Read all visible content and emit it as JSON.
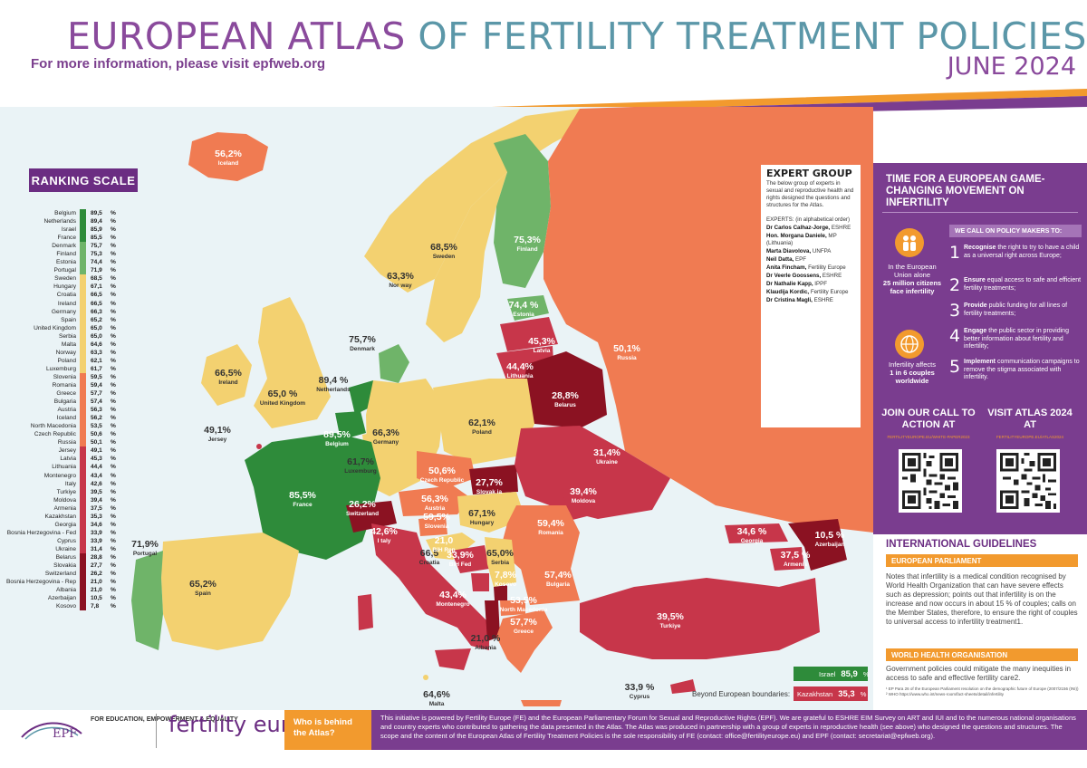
{
  "header": {
    "title_part1": "EUROPEAN ATLAS",
    "title_part2": "OF FERTILITY TREATMENT POLICIES",
    "subtitle": "For more information, please visit",
    "subtitle_link": "epfweb.org",
    "date": "JUNE 2024"
  },
  "ranking": {
    "title": "RANKING SCALE",
    "percent_sign": "%",
    "items": [
      {
        "name": "Belgium",
        "value": "89,5",
        "color": "#2e8b3a"
      },
      {
        "name": "Netherlands",
        "value": "89,4",
        "color": "#2e8b3a"
      },
      {
        "name": "Israel",
        "value": "85,9",
        "color": "#2e8b3a"
      },
      {
        "name": "France",
        "value": "85,5",
        "color": "#2e8b3a"
      },
      {
        "name": "Denmark",
        "value": "75,7",
        "color": "#6fb469"
      },
      {
        "name": "Finland",
        "value": "75,3",
        "color": "#6fb469"
      },
      {
        "name": "Estonia",
        "value": "74,4",
        "color": "#6fb469"
      },
      {
        "name": "Portugal",
        "value": "71,9",
        "color": "#6fb469"
      },
      {
        "name": "Sweden",
        "value": "68,5",
        "color": "#f3d170"
      },
      {
        "name": "Hungary",
        "value": "67,1",
        "color": "#f3d170"
      },
      {
        "name": "Croatia",
        "value": "66,5",
        "color": "#f3d170"
      },
      {
        "name": "Ireland",
        "value": "66,5",
        "color": "#f3d170"
      },
      {
        "name": "Germany",
        "value": "66,3",
        "color": "#f3d170"
      },
      {
        "name": "Spain",
        "value": "65,2",
        "color": "#f3d170"
      },
      {
        "name": "United Kingdom",
        "value": "65,0",
        "color": "#f3d170"
      },
      {
        "name": "Serbia",
        "value": "65,0",
        "color": "#f3d170"
      },
      {
        "name": "Malta",
        "value": "64,6",
        "color": "#f3d170"
      },
      {
        "name": "Norway",
        "value": "63,3",
        "color": "#f3d170"
      },
      {
        "name": "Poland",
        "value": "62,1",
        "color": "#f3d170"
      },
      {
        "name": "Luxemburg",
        "value": "61,7",
        "color": "#f3d170"
      },
      {
        "name": "Slovenia",
        "value": "59,5",
        "color": "#f07b52"
      },
      {
        "name": "Romania",
        "value": "59,4",
        "color": "#f07b52"
      },
      {
        "name": "Greece",
        "value": "57,7",
        "color": "#f07b52"
      },
      {
        "name": "Bulgaria",
        "value": "57,4",
        "color": "#f07b52"
      },
      {
        "name": "Austria",
        "value": "56,3",
        "color": "#f07b52"
      },
      {
        "name": "Iceland",
        "value": "56,2",
        "color": "#f07b52"
      },
      {
        "name": "North Macedonia",
        "value": "53,5",
        "color": "#f07b52"
      },
      {
        "name": "Czech Republic",
        "value": "50,6",
        "color": "#f07b52"
      },
      {
        "name": "Russia",
        "value": "50,1",
        "color": "#f07b52"
      },
      {
        "name": "Jersey",
        "value": "49,1",
        "color": "#c7364a"
      },
      {
        "name": "Latvia",
        "value": "45,3",
        "color": "#c7364a"
      },
      {
        "name": "Lithuania",
        "value": "44,4",
        "color": "#c7364a"
      },
      {
        "name": "Montenegro",
        "value": "43,4",
        "color": "#c7364a"
      },
      {
        "name": "Italy",
        "value": "42,6",
        "color": "#c7364a"
      },
      {
        "name": "Turkiye",
        "value": "39,5",
        "color": "#c7364a"
      },
      {
        "name": "Moldova",
        "value": "39,4",
        "color": "#c7364a"
      },
      {
        "name": "Armenia",
        "value": "37,5",
        "color": "#c7364a"
      },
      {
        "name": "Kazakhstan",
        "value": "35,3",
        "color": "#c7364a"
      },
      {
        "name": "Georgia",
        "value": "34,6",
        "color": "#c7364a"
      },
      {
        "name": "Bosnia Herzegovina - Fed",
        "value": "33,9",
        "color": "#c7364a"
      },
      {
        "name": "Cyprus",
        "value": "33,9",
        "color": "#c7364a"
      },
      {
        "name": "Ukraine",
        "value": "31,4",
        "color": "#c7364a"
      },
      {
        "name": "Belarus",
        "value": "28,8",
        "color": "#8b1222"
      },
      {
        "name": "Slovakia",
        "value": "27,7",
        "color": "#8b1222"
      },
      {
        "name": "Switzerland",
        "value": "26,2",
        "color": "#8b1222"
      },
      {
        "name": "Bosnia Herzegovina - Rep",
        "value": "21,0",
        "color": "#8b1222"
      },
      {
        "name": "Albania",
        "value": "21,0",
        "color": "#8b1222"
      },
      {
        "name": "Azerbaijan",
        "value": "10,5",
        "color": "#8b1222"
      },
      {
        "name": "Kosovo",
        "value": "7,8",
        "color": "#8b1222"
      }
    ]
  },
  "map_labels": [
    {
      "value": "56,2%",
      "name": "Iceland"
    },
    {
      "value": "68,5%",
      "name": "Sweden"
    },
    {
      "value": "75,3%",
      "name": "Finland"
    },
    {
      "value": "63,3%",
      "name": "Nor way"
    },
    {
      "value": "74,4 %",
      "name": "Estonia"
    },
    {
      "value": "45,3%",
      "name": "Latvia"
    },
    {
      "value": "44,4%",
      "name": "Lithuania"
    },
    {
      "value": "50,1%",
      "name": "Russia"
    },
    {
      "value": "75,7%",
      "name": "Denmark"
    },
    {
      "value": "66,5%",
      "name": "Ireland"
    },
    {
      "value": "65,0 %",
      "name": "United Kingdom"
    },
    {
      "value": "89,4 %",
      "name": "Netherlands"
    },
    {
      "value": "89,5%",
      "name": "Belgium"
    },
    {
      "value": "66,3%",
      "name": "Germany"
    },
    {
      "value": "62,1%",
      "name": "Poland"
    },
    {
      "value": "28,8%",
      "name": "Belarus"
    },
    {
      "value": "49,1%",
      "name": "Jersey"
    },
    {
      "value": "61,7%",
      "name": "Luxemburg"
    },
    {
      "value": "50,6%",
      "name": "Czech Republic"
    },
    {
      "value": "27,7%",
      "name": "Slovak ia"
    },
    {
      "value": "31,4%",
      "name": "Ukraine"
    },
    {
      "value": "85,5%",
      "name": "France"
    },
    {
      "value": "26,2%",
      "name": "Switzerland"
    },
    {
      "value": "56,3%",
      "name": "Austria"
    },
    {
      "value": "59,5%",
      "name": "Slovenia"
    },
    {
      "value": "67,1%",
      "name": "Hungary"
    },
    {
      "value": "39,4%",
      "name": "Moldova"
    },
    {
      "value": "59,4%",
      "name": "Romania"
    },
    {
      "value": "71,9%",
      "name": "Portugal"
    },
    {
      "value": "65,2%",
      "name": "Spain"
    },
    {
      "value": "42,6%",
      "name": "I taly"
    },
    {
      "value": "66,5",
      "name": "Croatia"
    },
    {
      "value": "21,0",
      "name": "BiH Rep"
    },
    {
      "value": "33,9%",
      "name": "BiH Fed"
    },
    {
      "value": "65,0%",
      "name": "Serbia"
    },
    {
      "value": "7,8%",
      "name": "Kosovo"
    },
    {
      "value": "57,4%",
      "name": "Bulgaria"
    },
    {
      "value": "43,4%",
      "name": "Montenegro"
    },
    {
      "value": "53,5%",
      "name": "North Macedonia"
    },
    {
      "value": "57,7%",
      "name": "Greece"
    },
    {
      "value": "21,0 %",
      "name": "Albania"
    },
    {
      "value": "64,6%",
      "name": "Malta"
    },
    {
      "value": "39,5%",
      "name": "Turkiye"
    },
    {
      "value": "33,9 %",
      "name": "Cyprus"
    },
    {
      "value": "34,6 %",
      "name": "Georgia"
    },
    {
      "value": "10,5 %",
      "name": "Azerbaijan"
    },
    {
      "value": "37,5 %",
      "name": "Armenia"
    }
  ],
  "expert_group": {
    "title": "EXPERT GROUP",
    "intro": "The below group of experts in sexual and reproductive health and rights designed the questions and structures for the Atlas.",
    "list_label": "EXPERTS: (in alphabetical order)",
    "experts": [
      {
        "name": "Dr Carlos Calhaz-Jorge,",
        "org": "ESHRE"
      },
      {
        "name": "Hon. Morgana Daniele,",
        "org": "MP (Lithuania)"
      },
      {
        "name": "Marta Diavolova,",
        "org": "UNFPA"
      },
      {
        "name": "Neil Datta,",
        "org": "EPF"
      },
      {
        "name": "Anita Fincham,",
        "org": "Fertility Europe"
      },
      {
        "name": "Dr Veerle Goossens,",
        "org": "ESHRE"
      },
      {
        "name": "Dr Nathalie Kapp,",
        "org": "IPPF"
      },
      {
        "name": "Klaudija Kordic,",
        "org": "Fertility Europe"
      },
      {
        "name": "Dr Cristina Magli,",
        "org": "ESHRE"
      }
    ]
  },
  "movement": {
    "title": "TIME FOR A EUROPEAN GAME-CHANGING MOVEMENT ON INFERTILITY",
    "eu_text": "In the European Union alone",
    "eu_bold": "25 million citizens face infertility",
    "inf_text": "Infertility affects",
    "inf_bold": "1 in 6 couples worldwide",
    "policy_title": "WE CALL ON POLICY MAKERS TO:",
    "policies": [
      {
        "num": "1",
        "bold": "Recognise",
        "text": "the right to try to have a child as a universal right across Europe;"
      },
      {
        "num": "2",
        "bold": "Ensure",
        "text": "equal access to safe and efficient fertility treatments;"
      },
      {
        "num": "3",
        "bold": "Provide",
        "text": "public funding for all lines of fertility treatments;"
      },
      {
        "num": "4",
        "bold": "Engage",
        "text": "the public sector in providing better information about fertility and infertility;"
      },
      {
        "num": "5",
        "bold": "Implement",
        "text": "communication campaigns to remove the stigma associated with infertility."
      }
    ],
    "cta1": "JOIN OUR CALL TO ACTION AT",
    "cta1_url": "FERTILITYEUROPE.EU/WHITE-PAPER2023",
    "cta2": "VISIT ATLAS 2024 AT",
    "cta2_url": "FERTILITYEUROPE.EU/ATLAS2024"
  },
  "guidelines": {
    "title": "INTERNATIONAL GUIDELINES",
    "ep_title": "EUROPEAN PARLIAMENT",
    "ep_text": "Notes that infertility is a medical condition recognised by World Health Organization that can have severe effects such as depression; points out that infertility is on the increase and now occurs in about 15 % of couples; calls on the Member States, therefore, to ensure the right of couples to universal access to infertility treatment1.",
    "who_title": "WORLD HEALTH ORGANISATION",
    "who_text": "Government policies could mitigate the many inequities in access to safe and effective fertility care2.",
    "footnote1": "¹ EP Para 26 of the European Parliament resolution on the demographic future of Europe (2007/2156 (INI))",
    "footnote2": "² WHO https://www.who.int/news-room/fact-sheets/detail/infertility"
  },
  "beyond": {
    "label": "Beyond European boundaries:",
    "israel_name": "Israel",
    "israel_value": "85,9",
    "kazakhstan_name": "Kazakhstan",
    "kazakhstan_value": "35,3",
    "percent": "%"
  },
  "footer": {
    "epf_logo": "EPF",
    "epf_tagline": "FOR EDUCATION, EMPOWERMENT & EQUALITY",
    "fe_logo": "fertility europe",
    "who_label": "Who is behind the Atlas?",
    "text": "This initiative is powered by Fertility Europe (FE) and the European Parliamentary Forum for Sexual and Reproductive Rights (EPF). We are grateful to ESHRE EIM Survey on ART and IUI and to the numerous national organisations and country experts who contributed to gathering the data presented in the Atlas. The Atlas was produced in partnership with a group of experts in reproductive health (see above) who designed the questions and structures. The scope and the content of the European Atlas of Fertility Treatment Policies is the sole responsibility of FE (contact: office@fertilityeurope.eu) and EPF (contact: secretariat@epfweb.org)."
  },
  "colors": {
    "purple": "#7a3d8f",
    "orange": "#f29a2e",
    "teal": "#5b97a8",
    "dark_green": "#2e8b3a",
    "light_green": "#6fb469",
    "yellow": "#f3d170",
    "salmon": "#f07b52",
    "red": "#c7364a",
    "dark_red": "#8b1222"
  }
}
